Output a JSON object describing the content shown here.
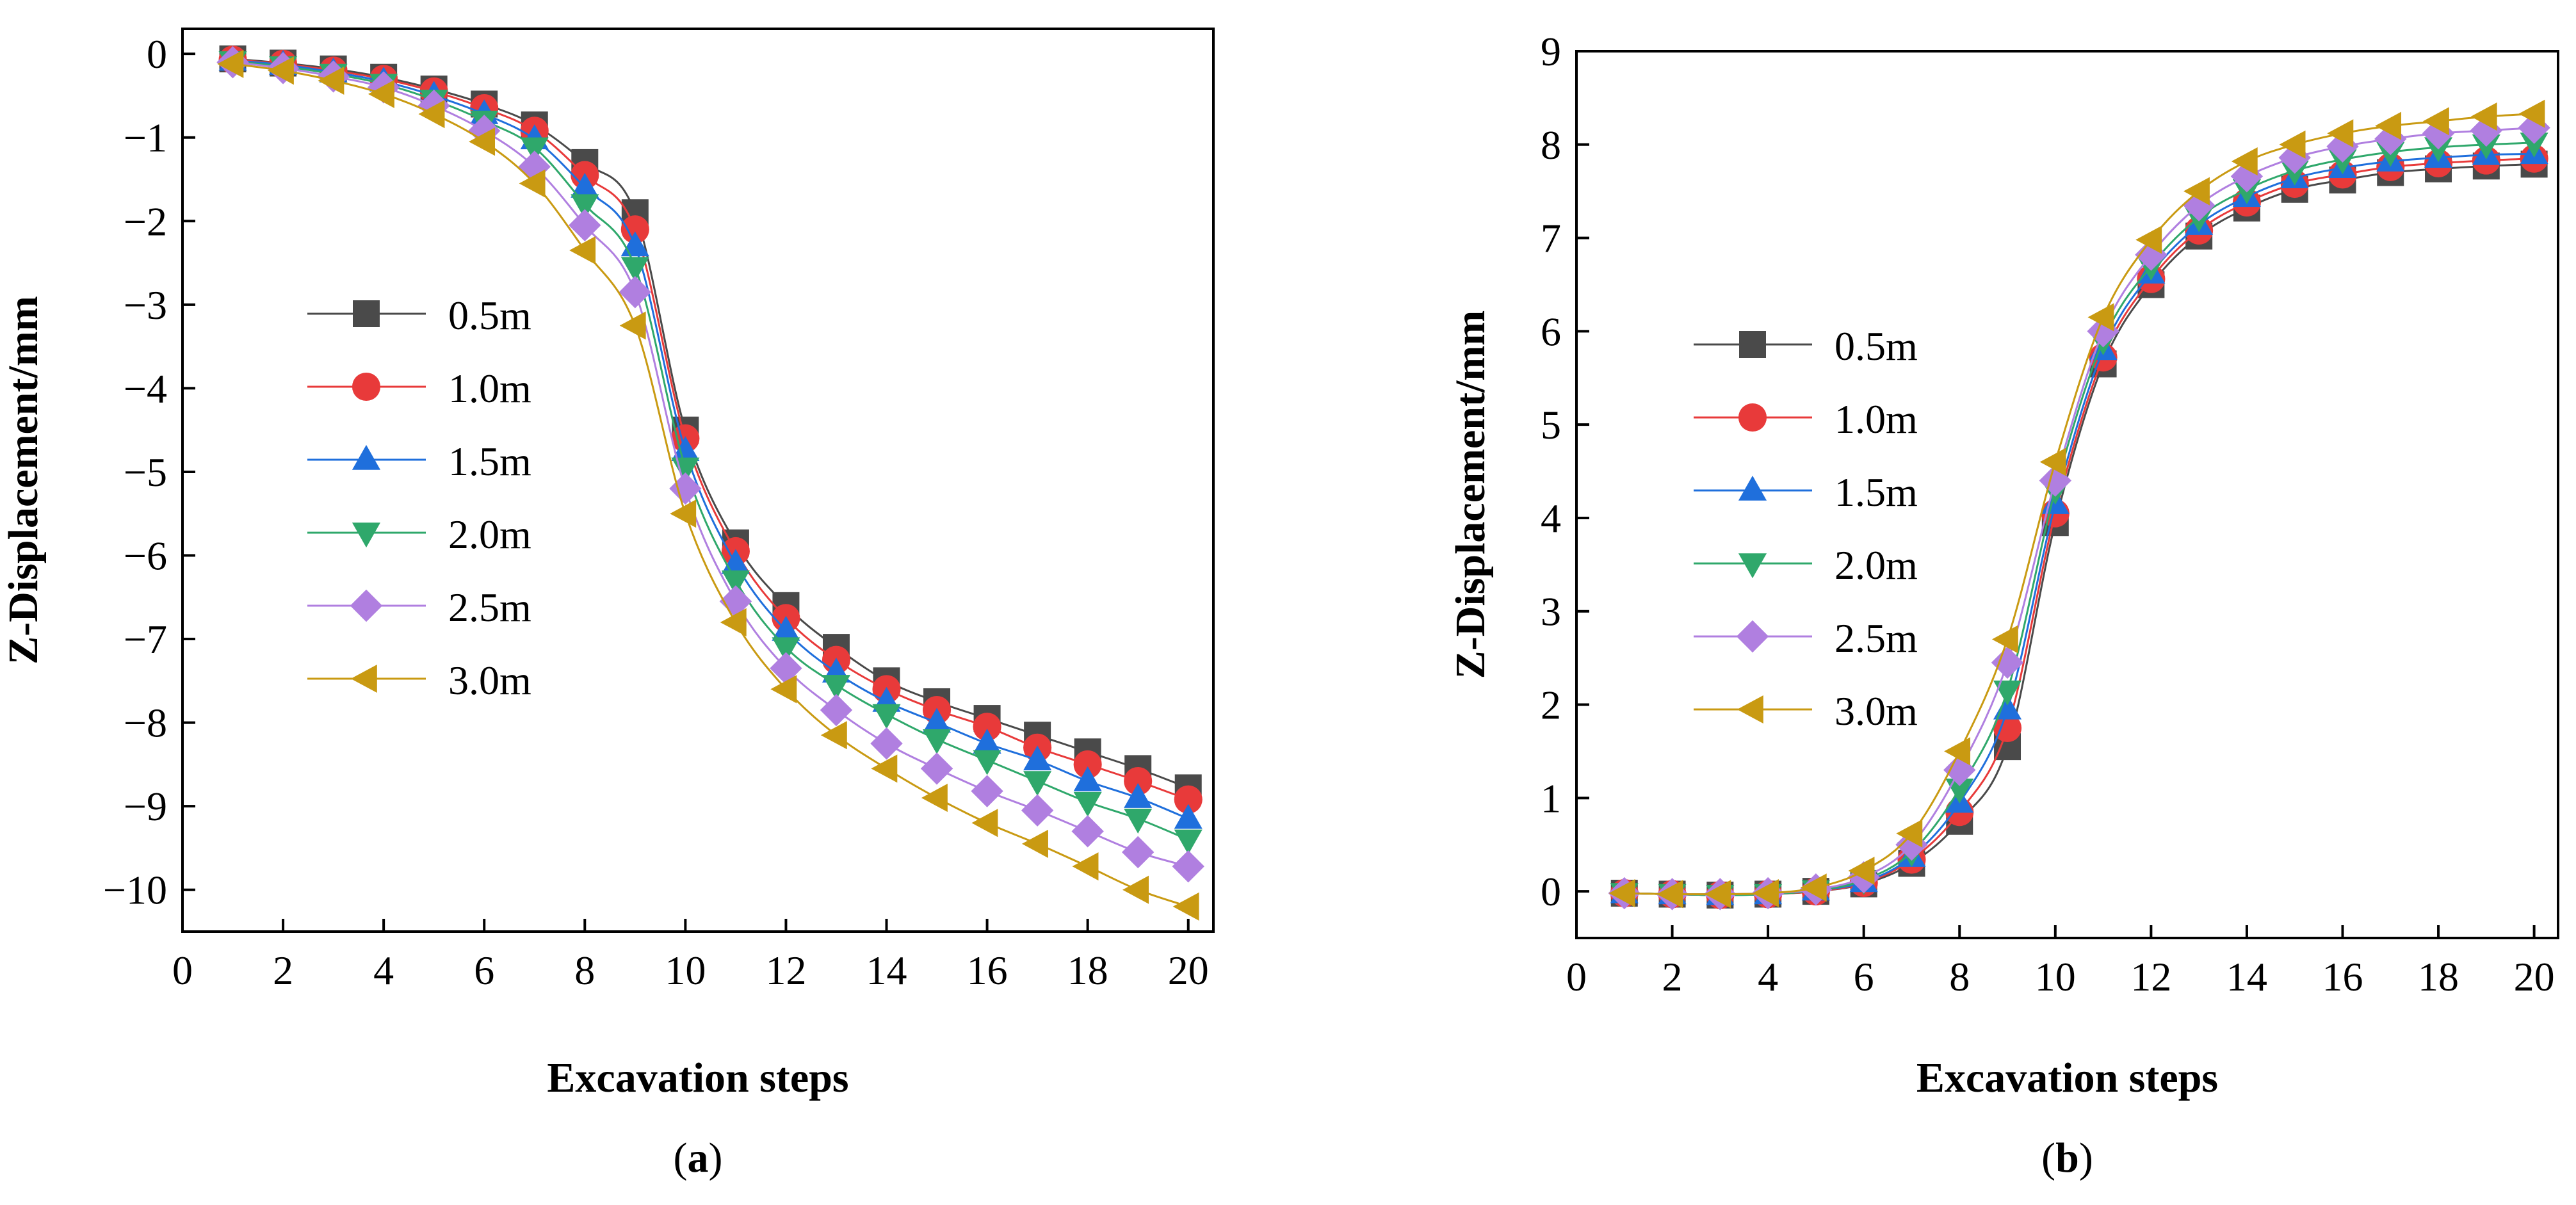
{
  "chart_data": [
    {
      "id": "a",
      "type": "line",
      "panel_label": "a",
      "xlabel": "Excavation steps",
      "ylabel": "Z-Displacement/mm",
      "xlim": [
        0,
        20.5
      ],
      "ylim": [
        -10.5,
        0.3
      ],
      "xticks": [
        0,
        2,
        4,
        6,
        8,
        10,
        12,
        14,
        16,
        18,
        20
      ],
      "yticks": [
        0,
        -1,
        -2,
        -3,
        -4,
        -5,
        -6,
        -7,
        -8,
        -9,
        -10
      ],
      "ytick_labels": [
        "0",
        "−1",
        "−2",
        "−3",
        "−4",
        "−5",
        "−6",
        "−7",
        "−8",
        "−9",
        "−10"
      ],
      "legend_position": "middle-left",
      "x": [
        1,
        2,
        3,
        4,
        5,
        6,
        7,
        8,
        9,
        10,
        11,
        12,
        13,
        14,
        15,
        16,
        17,
        18,
        19,
        20
      ],
      "series": [
        {
          "name": "0.5m",
          "marker": "square",
          "color": "#4a4a4a",
          "values": [
            -0.06,
            -0.11,
            -0.18,
            -0.28,
            -0.42,
            -0.6,
            -0.85,
            -1.3,
            -1.9,
            -4.5,
            -5.85,
            -6.6,
            -7.1,
            -7.5,
            -7.75,
            -7.95,
            -8.15,
            -8.35,
            -8.55,
            -8.78
          ]
        },
        {
          "name": "1.0m",
          "marker": "circle",
          "color": "#e83a3a",
          "values": [
            -0.07,
            -0.12,
            -0.2,
            -0.3,
            -0.45,
            -0.65,
            -0.92,
            -1.45,
            -2.1,
            -4.6,
            -5.95,
            -6.75,
            -7.25,
            -7.6,
            -7.85,
            -8.05,
            -8.3,
            -8.5,
            -8.7,
            -8.92
          ]
        },
        {
          "name": "1.5m",
          "marker": "triangle-up",
          "color": "#1f6fdc",
          "values": [
            -0.08,
            -0.13,
            -0.22,
            -0.33,
            -0.5,
            -0.72,
            -1.02,
            -1.6,
            -2.3,
            -4.75,
            -6.1,
            -6.9,
            -7.4,
            -7.75,
            -8.0,
            -8.25,
            -8.45,
            -8.7,
            -8.9,
            -9.15
          ]
        },
        {
          "name": "2.0m",
          "marker": "triangle-down",
          "color": "#2fa86b",
          "values": [
            -0.09,
            -0.15,
            -0.24,
            -0.36,
            -0.55,
            -0.8,
            -1.12,
            -1.8,
            -2.55,
            -4.95,
            -6.3,
            -7.1,
            -7.55,
            -7.9,
            -8.2,
            -8.45,
            -8.7,
            -8.95,
            -9.15,
            -9.4
          ]
        },
        {
          "name": "2.5m",
          "marker": "diamond",
          "color": "#b07fe0",
          "values": [
            -0.1,
            -0.17,
            -0.27,
            -0.4,
            -0.62,
            -0.92,
            -1.35,
            -2.05,
            -2.85,
            -5.2,
            -6.55,
            -7.35,
            -7.85,
            -8.25,
            -8.55,
            -8.82,
            -9.05,
            -9.3,
            -9.55,
            -9.72
          ]
        },
        {
          "name": "3.0m",
          "marker": "triangle-left",
          "color": "#c99a12",
          "values": [
            -0.12,
            -0.2,
            -0.32,
            -0.48,
            -0.72,
            -1.05,
            -1.55,
            -2.35,
            -3.25,
            -5.5,
            -6.8,
            -7.6,
            -8.15,
            -8.55,
            -8.9,
            -9.2,
            -9.45,
            -9.72,
            -10.0,
            -10.2
          ]
        }
      ]
    },
    {
      "id": "b",
      "type": "line",
      "panel_label": "b",
      "xlabel": "Excavation steps",
      "ylabel": "Z-Displacement/mm",
      "xlim": [
        0,
        20.5
      ],
      "ylim": [
        -0.5,
        9
      ],
      "xticks": [
        0,
        2,
        4,
        6,
        8,
        10,
        12,
        14,
        16,
        18,
        20
      ],
      "yticks": [
        0,
        1,
        2,
        3,
        4,
        5,
        6,
        7,
        8,
        9
      ],
      "ytick_labels": [
        "0",
        "1",
        "2",
        "3",
        "4",
        "5",
        "6",
        "7",
        "8",
        "9"
      ],
      "legend_position": "middle-left",
      "x": [
        1,
        2,
        3,
        4,
        5,
        6,
        7,
        8,
        9,
        10,
        11,
        12,
        13,
        14,
        15,
        16,
        17,
        18,
        19,
        20
      ],
      "series": [
        {
          "name": "0.5m",
          "marker": "square",
          "color": "#4a4a4a",
          "values": [
            -0.02,
            -0.03,
            -0.04,
            -0.03,
            0.0,
            0.08,
            0.3,
            0.75,
            1.55,
            3.95,
            5.65,
            6.5,
            7.02,
            7.32,
            7.52,
            7.62,
            7.7,
            7.74,
            7.77,
            7.79
          ]
        },
        {
          "name": "1.0m",
          "marker": "circle",
          "color": "#e83a3a",
          "values": [
            -0.02,
            -0.03,
            -0.04,
            -0.03,
            0.0,
            0.09,
            0.34,
            0.85,
            1.75,
            4.05,
            5.72,
            6.56,
            7.08,
            7.38,
            7.58,
            7.68,
            7.76,
            7.8,
            7.83,
            7.85
          ]
        },
        {
          "name": "1.5m",
          "marker": "triangle-up",
          "color": "#1f6fdc",
          "values": [
            -0.02,
            -0.03,
            -0.04,
            -0.03,
            0.01,
            0.1,
            0.37,
            0.95,
            1.95,
            4.15,
            5.8,
            6.62,
            7.14,
            7.44,
            7.64,
            7.75,
            7.82,
            7.86,
            7.89,
            7.9
          ]
        },
        {
          "name": "2.0m",
          "marker": "triangle-down",
          "color": "#2fa86b",
          "values": [
            -0.02,
            -0.03,
            -0.04,
            -0.03,
            0.01,
            0.12,
            0.42,
            1.1,
            2.15,
            4.3,
            5.9,
            6.7,
            7.22,
            7.52,
            7.72,
            7.84,
            7.92,
            7.97,
            8.0,
            8.02
          ]
        },
        {
          "name": "2.5m",
          "marker": "diamond",
          "color": "#b07fe0",
          "values": [
            -0.02,
            -0.03,
            -0.03,
            -0.02,
            0.02,
            0.15,
            0.5,
            1.3,
            2.45,
            4.4,
            6.0,
            6.82,
            7.35,
            7.66,
            7.86,
            7.98,
            8.06,
            8.12,
            8.15,
            8.18
          ]
        },
        {
          "name": "3.0m",
          "marker": "triangle-left",
          "color": "#c99a12",
          "values": [
            -0.02,
            -0.03,
            -0.03,
            -0.02,
            0.04,
            0.22,
            0.62,
            1.5,
            2.7,
            4.6,
            6.15,
            6.98,
            7.5,
            7.82,
            8.0,
            8.12,
            8.2,
            8.25,
            8.3,
            8.33
          ]
        }
      ]
    }
  ]
}
